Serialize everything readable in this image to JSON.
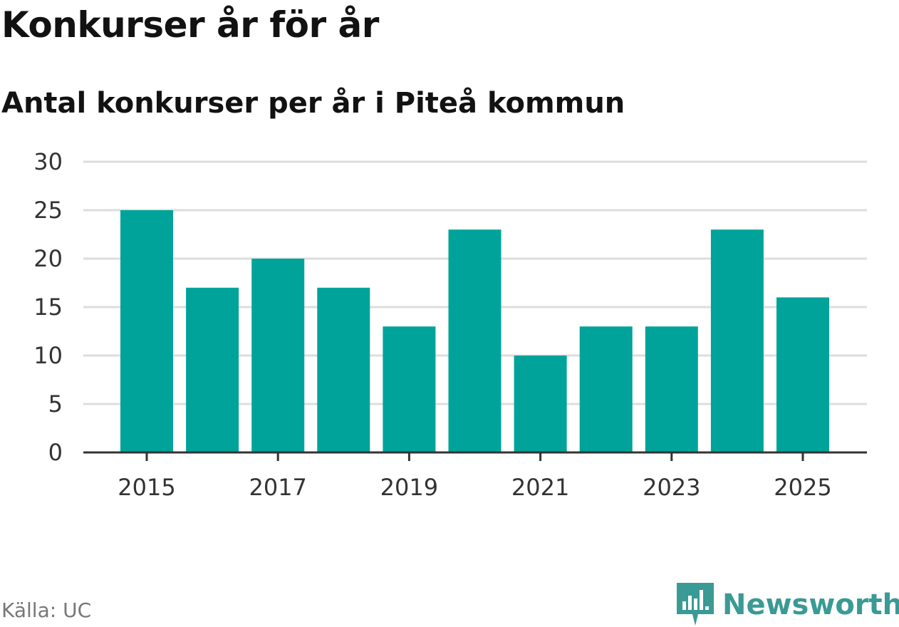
{
  "header": {
    "title": "Konkurser år för år",
    "subtitle": "Antal konkurser per år i Piteå kommun"
  },
  "footer": {
    "source": "Källa: UC",
    "brand": "Newsworthy"
  },
  "colors": {
    "bar": "#00a39a",
    "grid": "#dddddd",
    "axis": "#333333",
    "brand": "#3a9a95"
  },
  "chart_data": {
    "type": "bar",
    "title": "Konkurser år för år",
    "subtitle": "Antal konkurser per år i Piteå kommun",
    "xlabel": "",
    "ylabel": "",
    "categories": [
      "2015",
      "2016",
      "2017",
      "2018",
      "2019",
      "2020",
      "2021",
      "2022",
      "2023",
      "2024",
      "2025"
    ],
    "values": [
      25,
      17,
      20,
      17,
      13,
      23,
      10,
      13,
      13,
      23,
      16
    ],
    "x_tick_labels": [
      "2015",
      "2017",
      "2019",
      "2021",
      "2023",
      "2025"
    ],
    "y_ticks": [
      0,
      5,
      10,
      15,
      20,
      25,
      30
    ],
    "ylim": [
      0,
      30
    ],
    "grid": true
  }
}
